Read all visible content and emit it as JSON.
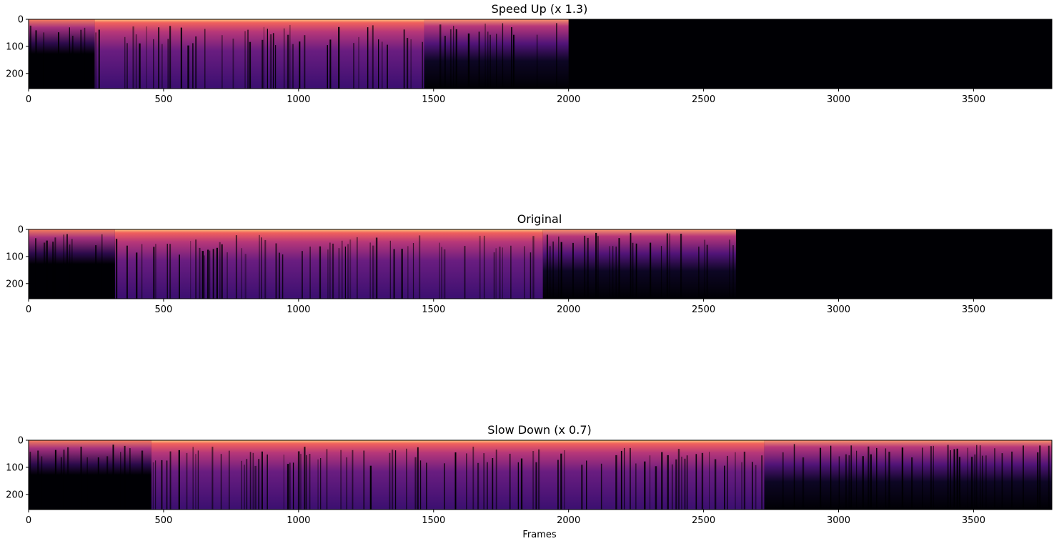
{
  "chart_data": [
    {
      "type": "heatmap",
      "title": "Speed Up (x 1.3)",
      "xlabel": "",
      "ylabel": "",
      "xlim": [
        0,
        3790
      ],
      "ylim": [
        256,
        0
      ],
      "x_ticks": [
        0,
        500,
        1000,
        1500,
        2000,
        2500,
        3000,
        3500
      ],
      "y_ticks": [
        0,
        100,
        200
      ],
      "x_tick_labels": [
        "0",
        "500",
        "1000",
        "1500",
        "2000",
        "2500",
        "3000",
        "3500"
      ],
      "y_tick_labels": [
        "0",
        "100",
        "200"
      ],
      "colormap": "magma",
      "segments": [
        {
          "start": 0,
          "end": 245,
          "level": "low"
        },
        {
          "start": 245,
          "end": 1465,
          "level": "high"
        },
        {
          "start": 1465,
          "end": 2000,
          "level": "sparse"
        },
        {
          "start": 2000,
          "end": 3790,
          "level": "silence"
        }
      ]
    },
    {
      "type": "heatmap",
      "title": "Original",
      "xlabel": "",
      "ylabel": "",
      "xlim": [
        0,
        3790
      ],
      "ylim": [
        256,
        0
      ],
      "x_ticks": [
        0,
        500,
        1000,
        1500,
        2000,
        2500,
        3000,
        3500
      ],
      "y_ticks": [
        0,
        100,
        200
      ],
      "x_tick_labels": [
        "0",
        "500",
        "1000",
        "1500",
        "2000",
        "2500",
        "3000",
        "3500"
      ],
      "y_tick_labels": [
        "0",
        "100",
        "200"
      ],
      "colormap": "magma",
      "segments": [
        {
          "start": 0,
          "end": 320,
          "level": "low"
        },
        {
          "start": 320,
          "end": 1905,
          "level": "high"
        },
        {
          "start": 1905,
          "end": 2620,
          "level": "sparse"
        },
        {
          "start": 2620,
          "end": 3790,
          "level": "silence"
        }
      ]
    },
    {
      "type": "heatmap",
      "title": "Slow Down (x 0.7)",
      "xlabel": "Frames",
      "ylabel": "",
      "xlim": [
        0,
        3790
      ],
      "ylim": [
        256,
        0
      ],
      "x_ticks": [
        0,
        500,
        1000,
        1500,
        2000,
        2500,
        3000,
        3500
      ],
      "y_ticks": [
        0,
        100,
        200
      ],
      "x_tick_labels": [
        "0",
        "500",
        "1000",
        "1500",
        "2000",
        "2500",
        "3000",
        "3500"
      ],
      "y_tick_labels": [
        "0",
        "100",
        "200"
      ],
      "colormap": "magma",
      "segments": [
        {
          "start": 0,
          "end": 455,
          "level": "low"
        },
        {
          "start": 455,
          "end": 2725,
          "level": "high"
        },
        {
          "start": 2725,
          "end": 3790,
          "level": "sparse"
        }
      ]
    }
  ]
}
